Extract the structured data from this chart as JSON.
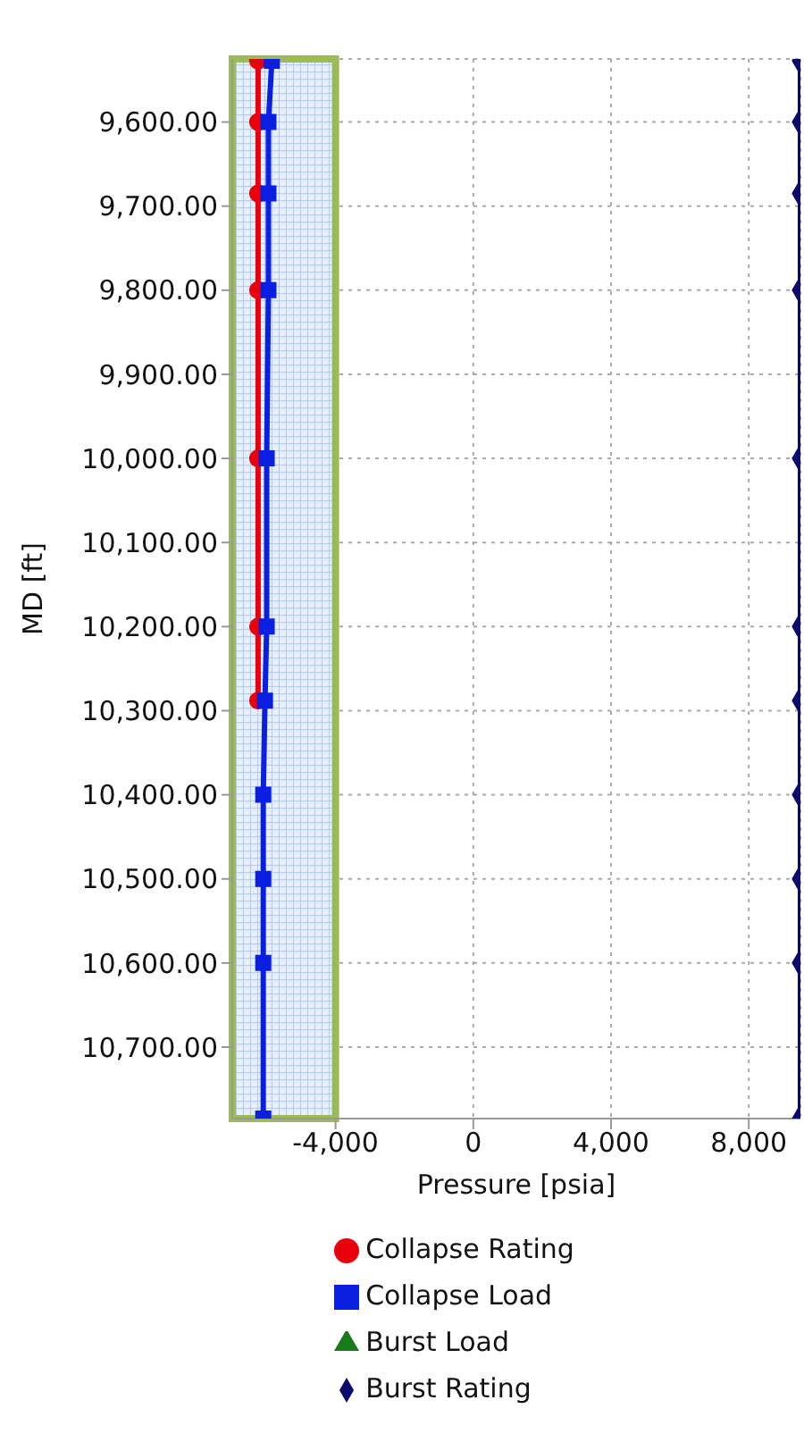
{
  "chart_data": {
    "type": "line",
    "xlabel": "Pressure [psia]",
    "ylabel": "MD [ft]",
    "xlim": [
      -7000,
      9500
    ],
    "xticks": [
      {
        "value": -4000,
        "label": "-4,000"
      },
      0,
      {
        "value": 4000,
        "label": "4,000"
      },
      {
        "value": 8000,
        "label": "8,000"
      }
    ],
    "ylim": [
      10785,
      9525
    ],
    "yticks": [
      {
        "value": 9600,
        "label": "9,600.00"
      },
      {
        "value": 9700,
        "label": "9,700.00"
      },
      {
        "value": 9800,
        "label": "9,800.00"
      },
      {
        "value": 9900,
        "label": "9,900.00"
      },
      {
        "value": 10000,
        "label": "10,000.00"
      },
      {
        "value": 10100,
        "label": "10,100.00"
      },
      {
        "value": 10200,
        "label": "10,200.00"
      },
      {
        "value": 10300,
        "label": "10,300.00"
      },
      {
        "value": 10400,
        "label": "10,400.00"
      },
      {
        "value": 10500,
        "label": "10,500.00"
      },
      {
        "value": 10600,
        "label": "10,600.00"
      },
      {
        "value": 10700,
        "label": "10,700.00"
      }
    ],
    "grid": true,
    "legend": "bottom",
    "line_style": "solid",
    "bands": [
      {
        "axis": "x",
        "from": -7000,
        "to": -4000,
        "color": "#9bbb59"
      }
    ],
    "series": [
      {
        "name": "Collapse Rating",
        "color": "#e8000b",
        "marker": "circle",
        "x": [
          -6250,
          -6250,
          -6250,
          -6250,
          -6250,
          -6250,
          -6250
        ],
        "values": [
          9527,
          9600,
          9685,
          9800,
          10000,
          10200,
          10288
        ]
      },
      {
        "name": "Collapse Load",
        "color": "#0a1fe0",
        "marker": "square",
        "x": [
          -5850,
          -5950,
          -5950,
          -5950,
          -6000,
          -6000,
          -6050,
          -6100,
          -6100,
          -6100,
          -6100
        ],
        "values": [
          9527,
          9600,
          9685,
          9800,
          10000,
          10200,
          10288,
          10400,
          10500,
          10600,
          10785
        ]
      },
      {
        "name": "Burst Load",
        "color": "#1a7a1a",
        "marker": "triangle",
        "x": [
          null
        ],
        "values": [
          null
        ]
      },
      {
        "name": "Burst Rating",
        "color": "#0b0b6e",
        "marker": "diamond",
        "x": [
          9500,
          9500,
          9500,
          9500,
          9500,
          9500,
          9500,
          9500,
          9500,
          9500,
          9500
        ],
        "values": [
          9527,
          9600,
          9685,
          9800,
          10000,
          10200,
          10288,
          10400,
          10500,
          10600,
          10785
        ]
      }
    ]
  }
}
